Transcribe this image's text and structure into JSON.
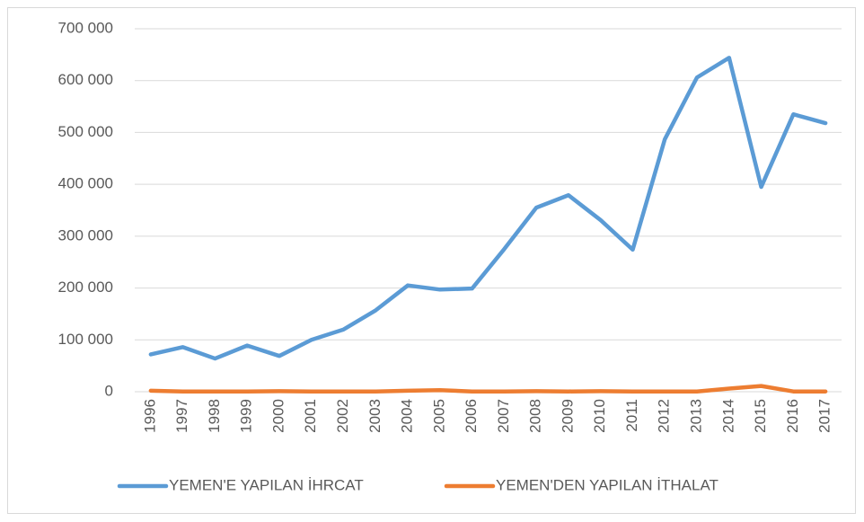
{
  "chart_data": {
    "type": "line",
    "categories": [
      "1996",
      "1997",
      "1998",
      "1999",
      "2000",
      "2001",
      "2002",
      "2003",
      "2004",
      "2005",
      "2006",
      "2007",
      "2008",
      "2009",
      "2010",
      "2011",
      "2012",
      "2013",
      "2014",
      "2015",
      "2016",
      "2017"
    ],
    "series": [
      {
        "name": "YEMEN'E YAPILAN İHRCAT",
        "color": "#5b9bd5",
        "values": [
          72000,
          86000,
          64000,
          89000,
          69000,
          100000,
          120000,
          157000,
          205000,
          197000,
          199000,
          275000,
          355000,
          379000,
          331000,
          274000,
          487000,
          606000,
          644000,
          395000,
          535000,
          518000
        ]
      },
      {
        "name": "YEMEN'DEN YAPILAN İTHALAT",
        "color": "#ed7d31",
        "values": [
          2000,
          500,
          500,
          500,
          1000,
          500,
          500,
          500,
          2000,
          3000,
          500,
          500,
          1000,
          500,
          1000,
          500,
          500,
          500,
          6000,
          11000,
          500,
          500
        ]
      }
    ],
    "ylim": [
      0,
      700000
    ],
    "yticks": [
      0,
      {
        "value": 100000,
        "label": "100 000"
      },
      {
        "value": 200000,
        "label": "200 000"
      },
      {
        "value": 300000,
        "label": "300 000"
      },
      {
        "value": 400000,
        "label": "400 000"
      },
      {
        "value": 500000,
        "label": "500 000"
      },
      {
        "value": 600000,
        "label": "600 000"
      },
      {
        "value": 700000,
        "label": "700 000"
      }
    ],
    "grid": true,
    "legend": "bottom"
  }
}
